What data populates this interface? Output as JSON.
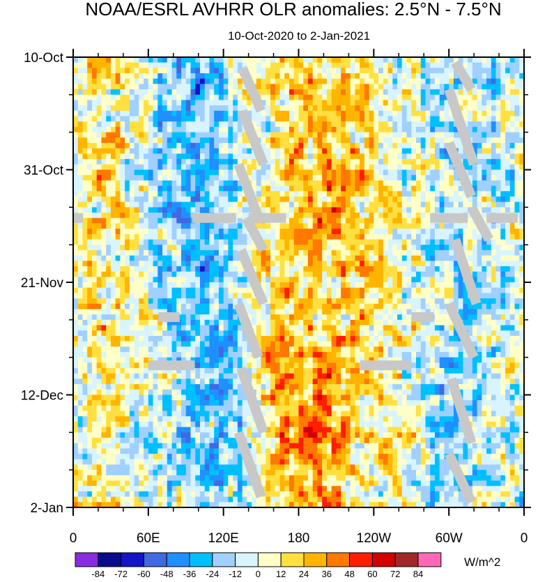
{
  "chart_data": {
    "type": "heatmap",
    "title": "NOAA/ESRL AVHRR OLR anomalies: 2.5°N - 7.5°N",
    "subtitle": "10-Oct-2020 to 2-Jan-2021",
    "x_ticks": [
      "0",
      "60E",
      "120E",
      "180",
      "120W",
      "60W",
      "0"
    ],
    "x_tick_values": [
      0,
      60,
      120,
      180,
      240,
      300,
      360
    ],
    "x_range": [
      0,
      360
    ],
    "y_ticks": [
      "10-Oct",
      "31-Oct",
      "21-Nov",
      "12-Dec",
      "2-Jan"
    ],
    "y_tick_days": [
      0,
      21,
      42,
      63,
      84
    ],
    "y_range_days": [
      0,
      84
    ],
    "colorbar": {
      "unit": "W/m^2",
      "labels": [
        "-84",
        "-72",
        "-60",
        "-48",
        "-36",
        "-24",
        "-12",
        "0",
        "12",
        "24",
        "36",
        "48",
        "60",
        "72",
        "84"
      ],
      "colors": [
        "#8a2be2",
        "#0a0a8c",
        "#1414c8",
        "#4169e1",
        "#1e90ff",
        "#00bfff",
        "#a0d0ff",
        "#d8f4ff",
        "#ffffc8",
        "#ffe040",
        "#ffb400",
        "#ff7800",
        "#ff1e00",
        "#d20000",
        "#a02828",
        "#ff69b4"
      ]
    },
    "missing_color": "#c8c8c8",
    "grid": false
  }
}
